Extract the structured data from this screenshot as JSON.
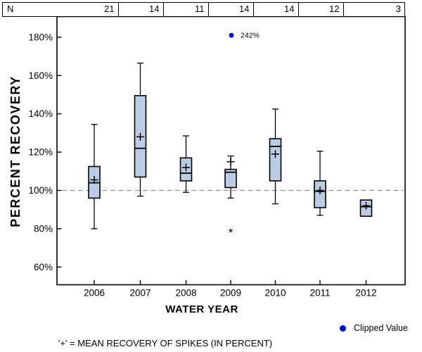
{
  "header_row": {
    "n_label": "N"
  },
  "chart_data": {
    "type": "boxplot",
    "title": "",
    "xlabel": "WATER YEAR",
    "ylabel": "PERCENT RECOVERY",
    "footnote": "'+' = MEAN RECOVERY OF SPIKES (IN PERCENT)",
    "legend": {
      "clipped_label": "Clipped Value",
      "position": "bottom-right"
    },
    "ylim": [
      50,
      191
    ],
    "yticks": [
      60,
      80,
      100,
      120,
      140,
      160,
      180
    ],
    "ytick_suffix": "%",
    "reference_line": 100,
    "grid": false,
    "categories": [
      "2006",
      "2007",
      "2008",
      "2009",
      "2010",
      "2011",
      "2012"
    ],
    "n_values": [
      21,
      14,
      11,
      14,
      14,
      12,
      3
    ],
    "series": [
      {
        "year": "2006",
        "n": 21,
        "whisker_low": 80,
        "q1": 96,
        "median": 104,
        "mean": 105.5,
        "q3": 112.5,
        "whisker_high": 134.5
      },
      {
        "year": "2007",
        "n": 14,
        "whisker_low": 97,
        "q1": 107,
        "median": 122,
        "mean": 128,
        "q3": 149.5,
        "whisker_high": 166.5
      },
      {
        "year": "2008",
        "n": 11,
        "whisker_low": 99,
        "q1": 105,
        "median": 109,
        "mean": 112,
        "q3": 117,
        "whisker_high": 128.5
      },
      {
        "year": "2009",
        "n": 14,
        "whisker_low": 96,
        "q1": 101.5,
        "median": 109.5,
        "mean": 115,
        "q3": 111,
        "whisker_high": 118,
        "outliers": [
          80
        ],
        "clipped_value": {
          "label": "242%",
          "plotted_at": 181
        }
      },
      {
        "year": "2010",
        "n": 14,
        "whisker_low": 93,
        "q1": 105,
        "median": 123,
        "mean": 119,
        "q3": 127,
        "whisker_high": 142.5
      },
      {
        "year": "2011",
        "n": 12,
        "whisker_low": 87,
        "q1": 91,
        "median": 99.5,
        "mean": 100,
        "q3": 105,
        "whisker_high": 120.5
      },
      {
        "year": "2012",
        "n": 3,
        "whisker_low": null,
        "q1": 86.5,
        "median": 91.5,
        "mean": 92,
        "q3": 95,
        "whisker_high": null
      }
    ],
    "colors": {
      "box_fill": "#b9cde5",
      "box_stroke": "#000000",
      "clipped_dot": "#0000ee",
      "reference_line": "#8f8f8f",
      "text": "#000000"
    }
  }
}
